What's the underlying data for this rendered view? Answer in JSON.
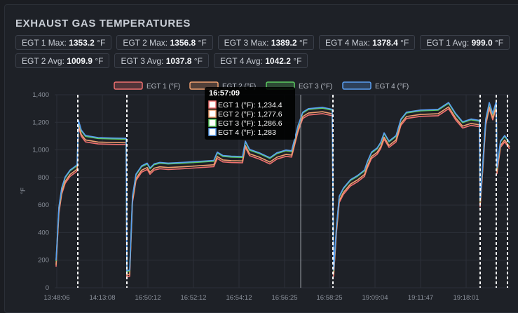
{
  "header": {
    "title": "EXHAUST GAS TEMPERATURES"
  },
  "stats": [
    {
      "label": "EGT 1 Max:",
      "value": "1353.2",
      "unit": "°F"
    },
    {
      "label": "EGT 2 Max:",
      "value": "1356.8",
      "unit": "°F"
    },
    {
      "label": "EGT 3 Max:",
      "value": "1389.2",
      "unit": "°F"
    },
    {
      "label": "EGT 4 Max:",
      "value": "1378.4",
      "unit": "°F"
    },
    {
      "label": "EGT 1 Avg:",
      "value": "999.0",
      "unit": "°F"
    },
    {
      "label": "EGT 2 Avg:",
      "value": "1009.9",
      "unit": "°F"
    },
    {
      "label": "EGT 3 Avg:",
      "value": "1037.8",
      "unit": "°F"
    },
    {
      "label": "EGT 4 Avg:",
      "value": "1042.2",
      "unit": "°F"
    }
  ],
  "colors": {
    "egt1": "#f07070",
    "egt2": "#f0a070",
    "egt3": "#5ccc60",
    "egt4": "#5a9ef0",
    "grid": "#2c3038",
    "divider": "#ffffff",
    "cursor": "#9a9ea6"
  },
  "chart_data": {
    "type": "line",
    "title": "",
    "xlabel": "",
    "ylabel": "°F",
    "ylim": [
      0,
      1400
    ],
    "yticks": [
      "0",
      "200",
      "400",
      "600",
      "800",
      "1,000",
      "1,200",
      "1,400"
    ],
    "x": [
      "13:48:06",
      "14:13:08",
      "16:50:12",
      "16:52:12",
      "16:54:12",
      "16:56:25",
      "16:58:25",
      "19:09:04",
      "19:11:47",
      "19:18:01"
    ],
    "grid": true,
    "legend_position": "top",
    "series": [
      {
        "name": "EGT 1 (°F)",
        "key": "egt1"
      },
      {
        "name": "EGT 2 (°F)",
        "key": "egt2"
      },
      {
        "name": "EGT 3 (°F)",
        "key": "egt3"
      },
      {
        "name": "EGT 4 (°F)",
        "key": "egt4"
      }
    ],
    "tooltip": {
      "time": "16:57:09",
      "rows": [
        {
          "label": "EGT 1 (°F): 1,234.4",
          "key": "egt1"
        },
        {
          "label": "EGT 2 (°F): 1,277.6",
          "key": "egt2"
        },
        {
          "label": "EGT 3 (°F): 1,286.6",
          "key": "egt3"
        },
        {
          "label": "EGT 4 (°F): 1,283",
          "key": "egt4"
        }
      ]
    }
  }
}
